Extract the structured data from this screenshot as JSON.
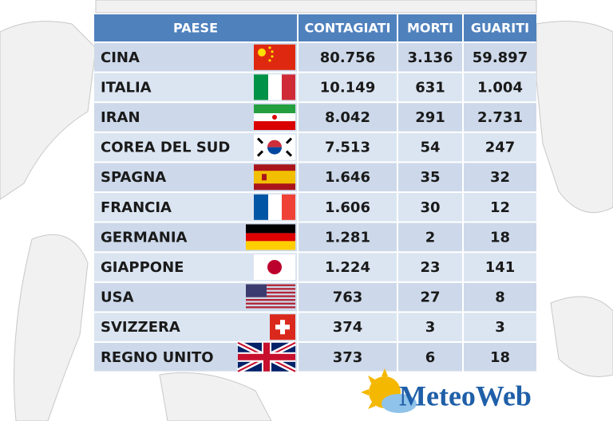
{
  "table": {
    "header": [
      "PAESE",
      "CONTAGIATI",
      "MORTI",
      "GUARITI"
    ],
    "rows": [
      [
        "CINA",
        "80.756",
        "3.136",
        "59.897"
      ],
      [
        "ITALIA",
        "10.149",
        "631",
        "1.004"
      ],
      [
        "IRAN",
        "8.042",
        "291",
        "2.731"
      ],
      [
        "COREA DEL SUD",
        "7.513",
        "54",
        "247"
      ],
      [
        "SPAGNA",
        "1.646",
        "35",
        "32"
      ],
      [
        "FRANCIA",
        "1.606",
        "30",
        "12"
      ],
      [
        "GERMANIA",
        "1.281",
        "2",
        "18"
      ],
      [
        "GIAPPONE",
        "1.224",
        "23",
        "141"
      ],
      [
        "USA",
        "763",
        "27",
        "8"
      ],
      [
        "SVIZZERA",
        "374",
        "3",
        "3"
      ],
      [
        "REGNO UNITO",
        "373",
        "6",
        "18"
      ]
    ]
  },
  "logo": "MeteoWeb"
}
